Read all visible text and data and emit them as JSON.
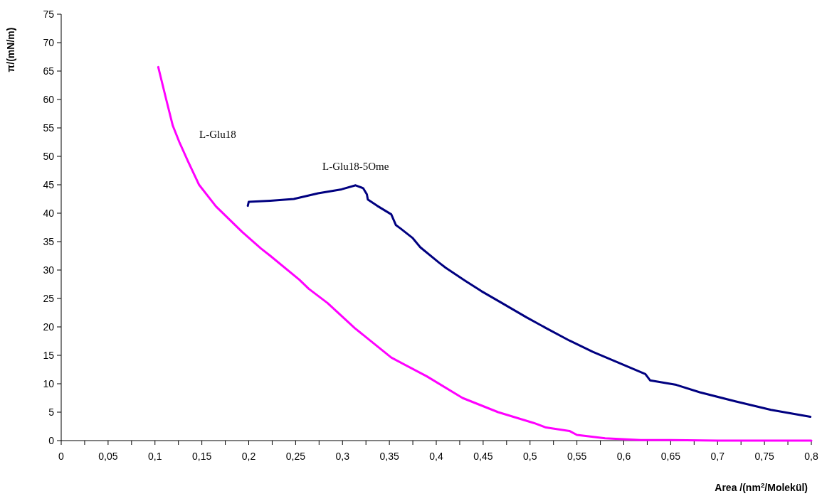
{
  "chart_data": {
    "type": "line",
    "xlabel": "Area /(nm$^{2}$/Molekül)",
    "ylabel": "π/(mN/m)",
    "xlim": [
      0,
      0.8
    ],
    "ylim": [
      0,
      75
    ],
    "xticks": [
      {
        "value": 0,
        "label": "0"
      },
      {
        "value": 0.025,
        "label": null
      },
      {
        "value": 0.05,
        "label": "0,05"
      },
      {
        "value": 0.075,
        "label": null
      },
      {
        "value": 0.1,
        "label": "0,1"
      },
      {
        "value": 0.125,
        "label": null
      },
      {
        "value": 0.15,
        "label": "0,15"
      },
      {
        "value": 0.175,
        "label": null
      },
      {
        "value": 0.2,
        "label": "0,2"
      },
      {
        "value": 0.225,
        "label": null
      },
      {
        "value": 0.25,
        "label": "0,25"
      },
      {
        "value": 0.275,
        "label": null
      },
      {
        "value": 0.3,
        "label": "0,3"
      },
      {
        "value": 0.325,
        "label": null
      },
      {
        "value": 0.35,
        "label": "0,35"
      },
      {
        "value": 0.375,
        "label": null
      },
      {
        "value": 0.4,
        "label": "0,4"
      },
      {
        "value": 0.425,
        "label": null
      },
      {
        "value": 0.45,
        "label": "0,45"
      },
      {
        "value": 0.475,
        "label": null
      },
      {
        "value": 0.5,
        "label": "0,5"
      },
      {
        "value": 0.525,
        "label": null
      },
      {
        "value": 0.55,
        "label": "0,55"
      },
      {
        "value": 0.575,
        "label": null
      },
      {
        "value": 0.6,
        "label": "0,6"
      },
      {
        "value": 0.625,
        "label": null
      },
      {
        "value": 0.65,
        "label": "0,65"
      },
      {
        "value": 0.675,
        "label": null
      },
      {
        "value": 0.7,
        "label": "0,7"
      },
      {
        "value": 0.725,
        "label": null
      },
      {
        "value": 0.75,
        "label": "0,75"
      },
      {
        "value": 0.775,
        "label": null
      },
      {
        "value": 0.8,
        "label": "0,8"
      }
    ],
    "yticks": [
      0,
      5,
      10,
      15,
      20,
      25,
      30,
      35,
      40,
      45,
      50,
      55,
      60,
      65,
      70,
      75
    ],
    "grid": false,
    "marker": "none",
    "line_style": "solid",
    "series": [
      {
        "name": "L-Glu18",
        "color": "#ff00ff",
        "x": [
          0.1035,
          0.112,
          0.119,
          0.126,
          0.135,
          0.147,
          0.165,
          0.193,
          0.213,
          0.223,
          0.254,
          0.264,
          0.284,
          0.313,
          0.352,
          0.39,
          0.428,
          0.466,
          0.504,
          0.517,
          0.542,
          0.55,
          0.58,
          0.618,
          0.65,
          0.7,
          0.75,
          0.8
        ],
        "values": [
          65.7,
          60,
          55.4,
          52.5,
          49.2,
          45,
          41.2,
          36.7,
          33.8,
          32.5,
          28.3,
          26.7,
          24.2,
          19.8,
          14.6,
          11.3,
          7.5,
          5,
          3.1,
          2.3,
          1.7,
          1,
          0.4,
          0.1,
          0.1,
          0,
          0,
          0
        ]
      },
      {
        "name": "L-Glu18-5Ome",
        "color": "#000080",
        "x": [
          0.199,
          0.2,
          0.223,
          0.248,
          0.274,
          0.299,
          0.314,
          0.322,
          0.326,
          0.327,
          0.337,
          0.352,
          0.357,
          0.362,
          0.375,
          0.383,
          0.403,
          0.41,
          0.431,
          0.448,
          0.469,
          0.496,
          0.517,
          0.542,
          0.567,
          0.593,
          0.623,
          0.628,
          0.656,
          0.681,
          0.719,
          0.757,
          0.799
        ],
        "values": [
          41.3,
          42,
          42.2,
          42.5,
          43.5,
          44.2,
          44.9,
          44.4,
          43.3,
          42.4,
          41.3,
          39.8,
          37.9,
          37.3,
          35.6,
          34,
          31.3,
          30.4,
          28.1,
          26.3,
          24.3,
          21.7,
          19.8,
          17.6,
          15.6,
          13.8,
          11.7,
          10.6,
          9.8,
          8.5,
          6.9,
          5.4,
          4.2
        ]
      }
    ]
  }
}
